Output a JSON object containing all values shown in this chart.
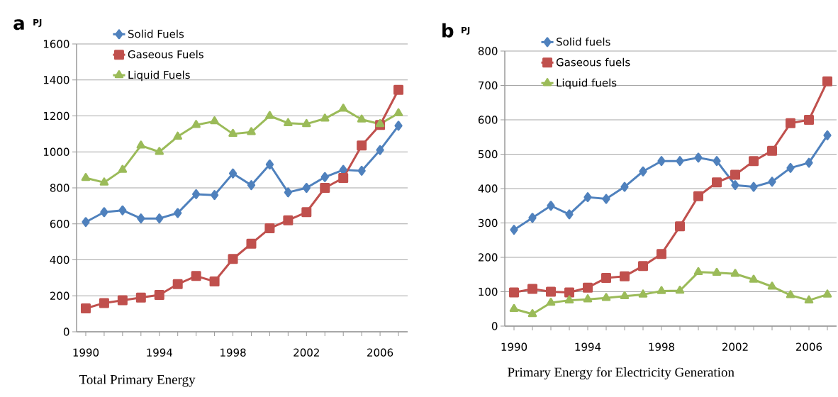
{
  "chart_data": [
    {
      "type": "line",
      "title": "a",
      "ylabel": "PJ",
      "xlabel": "Total Primary Energy",
      "categories": [
        "1990",
        null,
        null,
        null,
        "1994",
        null,
        null,
        null,
        "1998",
        null,
        null,
        null,
        "2002",
        null,
        null,
        null,
        "2006",
        null
      ],
      "ylim": [
        0,
        1600
      ],
      "yticks": [
        0,
        200,
        400,
        600,
        800,
        1000,
        1200,
        1400,
        1600
      ],
      "grid": "y",
      "legend": "top left",
      "series": [
        {
          "name": "Solid Fuels",
          "color": "#4f81bd",
          "marker": "diamond",
          "values": [
            610,
            665,
            675,
            630,
            630,
            660,
            765,
            760,
            880,
            815,
            930,
            775,
            800,
            860,
            900,
            895,
            1010,
            1145
          ]
        },
        {
          "name": "Gaseous Fuels",
          "color": "#c0504d",
          "marker": "square",
          "values": [
            130,
            160,
            175,
            190,
            205,
            265,
            310,
            280,
            405,
            490,
            575,
            620,
            665,
            800,
            855,
            1035,
            1150,
            1345
          ]
        },
        {
          "name": "Liquid Fuels",
          "color": "#9bbb59",
          "marker": "triangle",
          "values": [
            855,
            830,
            900,
            1035,
            1000,
            1085,
            1150,
            1170,
            1100,
            1110,
            1200,
            1160,
            1155,
            1185,
            1240,
            1180,
            1155,
            1215
          ]
        }
      ]
    },
    {
      "type": "line",
      "title": "b",
      "ylabel": "PJ",
      "xlabel": "Primary Energy for Electricity Generation",
      "categories": [
        "1990",
        null,
        null,
        null,
        "1994",
        null,
        null,
        null,
        "1998",
        null,
        null,
        null,
        "2002",
        null,
        null,
        null,
        "2006",
        null
      ],
      "ylim": [
        0,
        800
      ],
      "yticks": [
        0,
        100,
        200,
        300,
        400,
        500,
        600,
        700,
        800
      ],
      "grid": "y",
      "legend": "top left",
      "series": [
        {
          "name": "Solid fuels",
          "color": "#4f81bd",
          "marker": "diamond",
          "values": [
            280,
            315,
            350,
            325,
            375,
            370,
            405,
            450,
            480,
            480,
            490,
            480,
            410,
            405,
            420,
            460,
            475,
            555
          ]
        },
        {
          "name": "Gaseous fuels",
          "color": "#c0504d",
          "marker": "square",
          "values": [
            98,
            108,
            100,
            98,
            112,
            140,
            145,
            175,
            210,
            290,
            378,
            418,
            440,
            480,
            510,
            590,
            600,
            712
          ]
        },
        {
          "name": "Liquid fuels",
          "color": "#9bbb59",
          "marker": "triangle",
          "values": [
            50,
            35,
            68,
            75,
            78,
            82,
            87,
            92,
            102,
            103,
            157,
            155,
            152,
            135,
            115,
            90,
            75,
            92
          ]
        }
      ]
    }
  ]
}
